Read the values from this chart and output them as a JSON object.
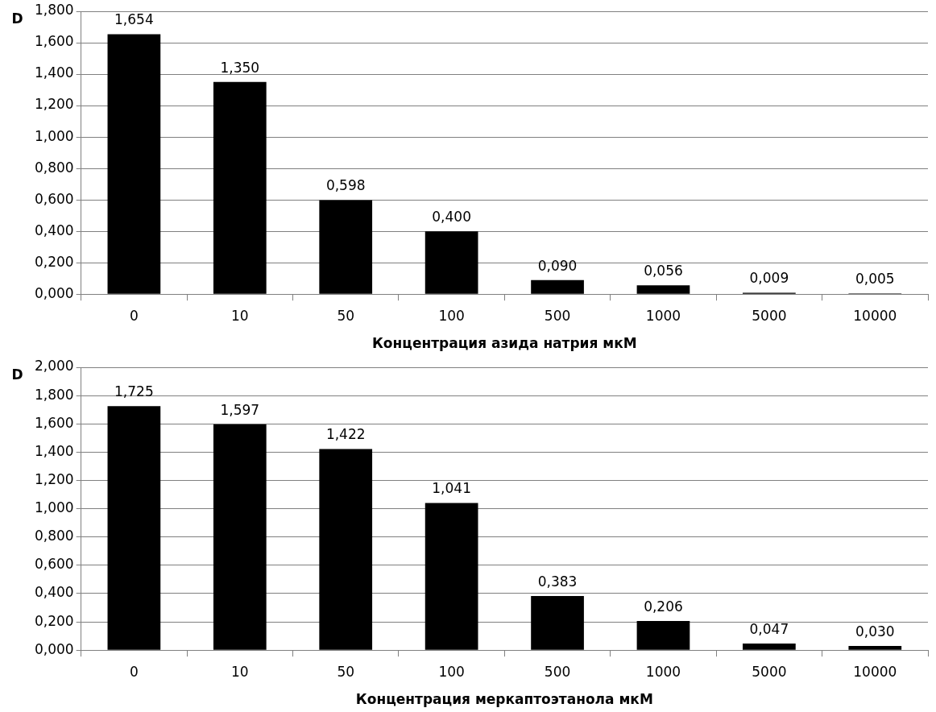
{
  "chart_data": [
    {
      "type": "bar",
      "ylabel": "D",
      "xlabel": "Концентрация азида натрия мкМ",
      "categories": [
        "0",
        "10",
        "50",
        "100",
        "500",
        "1000",
        "5000",
        "10000"
      ],
      "values": [
        1.654,
        1.35,
        0.598,
        0.4,
        0.09,
        0.056,
        0.009,
        0.005
      ],
      "value_labels": [
        "1,654",
        "1,350",
        "0,598",
        "0,400",
        "0,090",
        "0,056",
        "0,009",
        "0,005"
      ],
      "color": "#000000",
      "ylim": [
        0,
        1.8
      ],
      "yticks": [
        {
          "value": 0,
          "label": "0,000"
        },
        {
          "value": 0.2,
          "label": "0,200"
        },
        {
          "value": 0.4,
          "label": "0,400"
        },
        {
          "value": 0.6,
          "label": "0,600"
        },
        {
          "value": 0.8,
          "label": "0,800"
        },
        {
          "value": 1,
          "label": "1,000"
        },
        {
          "value": 1.2,
          "label": "1,200"
        },
        {
          "value": 1.4,
          "label": "1,400"
        },
        {
          "value": 1.6,
          "label": "1,600"
        },
        {
          "value": 1.8,
          "label": "1,800"
        }
      ],
      "grid": "y",
      "legend": false
    },
    {
      "type": "bar",
      "ylabel": "D",
      "xlabel": "Концентрация меркаптоэтанола мкМ",
      "categories": [
        "0",
        "10",
        "50",
        "100",
        "500",
        "1000",
        "5000",
        "10000"
      ],
      "values": [
        1.725,
        1.597,
        1.422,
        1.041,
        0.383,
        0.206,
        0.047,
        0.03
      ],
      "value_labels": [
        "1,725",
        "1,597",
        "1,422",
        "1,041",
        "0,383",
        "0,206",
        "0,047",
        "0,030"
      ],
      "color": "#000000",
      "ylim": [
        0,
        2
      ],
      "yticks": [
        {
          "value": 0,
          "label": "0,000"
        },
        {
          "value": 0.2,
          "label": "0,200"
        },
        {
          "value": 0.4,
          "label": "0,400"
        },
        {
          "value": 0.6,
          "label": "0,600"
        },
        {
          "value": 0.8,
          "label": "0,800"
        },
        {
          "value": 1,
          "label": "1,000"
        },
        {
          "value": 1.2,
          "label": "1,200"
        },
        {
          "value": 1.4,
          "label": "1,400"
        },
        {
          "value": 1.6,
          "label": "1,600"
        },
        {
          "value": 1.8,
          "label": "1,800"
        },
        {
          "value": 2,
          "label": "2,000"
        }
      ],
      "grid": "y",
      "legend": false
    }
  ]
}
